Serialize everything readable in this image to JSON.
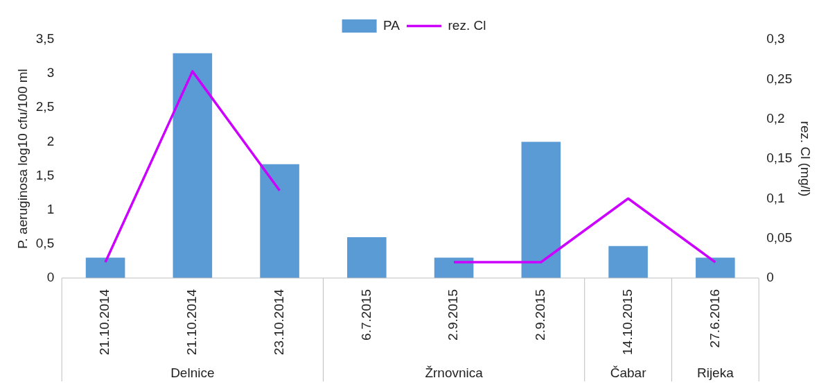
{
  "chart_data": {
    "type": "bar",
    "ylabel": "P. aeruginosa log10 cfu/100 ml",
    "y2label": "rez. Cl (mg/l)",
    "categories": [
      "21.10.2014",
      "21.10.2014",
      "23.10.2014",
      "6.7.2015",
      "2.9.2015",
      "2.9.2015",
      "14.10.2015",
      "27.6.2016"
    ],
    "series": [
      {
        "name": "PA",
        "color": "#5b9bd5",
        "values": [
          0.3,
          3.3,
          1.67,
          0.6,
          0.3,
          2.0,
          0.47,
          0.3
        ]
      },
      {
        "name": "rez. Cl",
        "type": "line",
        "axis": "y2",
        "color": "#cc00ff",
        "values": [
          0.02,
          0.26,
          0.11,
          null,
          0.02,
          0.02,
          0.1,
          0.02
        ]
      }
    ],
    "ylim": [
      0,
      3.5
    ],
    "yticks": [
      0,
      {
        "value": 0.5,
        "label": "0,5"
      },
      1,
      {
        "value": 1.5,
        "label": "1,5"
      },
      2,
      {
        "value": 2.5,
        "label": "2,5"
      },
      3,
      {
        "value": 3.5,
        "label": "3,5"
      }
    ],
    "y2lim": [
      0,
      0.3
    ],
    "y2ticks": [
      0,
      {
        "value": 0.05,
        "label": "0,05"
      },
      {
        "value": 0.1,
        "label": "0,1"
      },
      {
        "value": 0.15,
        "label": "0,15"
      },
      {
        "value": 0.2,
        "label": "0,2"
      },
      {
        "value": 0.25,
        "label": "0,25"
      },
      {
        "value": 0.3,
        "label": "0,3"
      }
    ],
    "annotations": [
      "Delnice",
      "Žrnovnica",
      "Čabar",
      "Rijeka"
    ],
    "grid": false,
    "legend": "top"
  }
}
